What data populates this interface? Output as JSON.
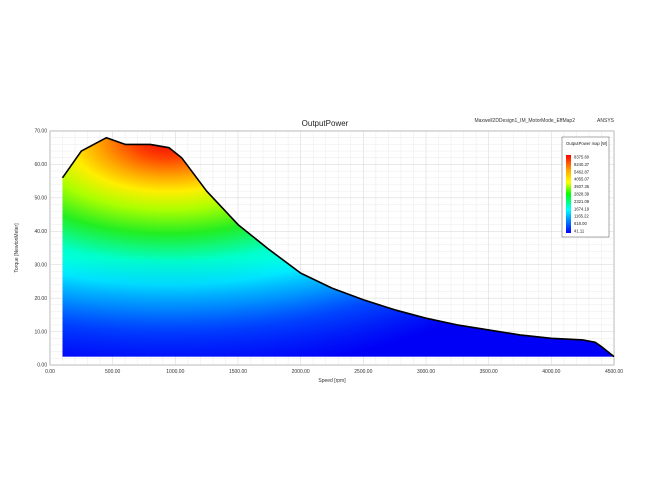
{
  "chart_data": {
    "type": "heatmap",
    "title": "OutputPower",
    "design_label": "Maxwell2DDesign1_IM_MotorMode_EffMap2",
    "brand": "ANSYS",
    "xlabel": "Speed [rpm]",
    "ylabel": "Torque [NewtonMeter]",
    "xlim": [
      0,
      4500
    ],
    "ylim": [
      0,
      70
    ],
    "grid": true,
    "x_ticks": [
      "0.00",
      "500.00",
      "1000.00",
      "1500.00",
      "2000.00",
      "2500.00",
      "3000.00",
      "3500.00",
      "4000.00",
      "4500.00"
    ],
    "y_ticks": [
      "0.00",
      "10.00",
      "20.00",
      "30.00",
      "40.00",
      "50.00",
      "60.00",
      "70.00"
    ],
    "envelope": {
      "x": [
        100,
        250,
        450,
        600,
        800,
        950,
        1050,
        1250,
        1500,
        1750,
        2000,
        2250,
        2500,
        2750,
        3000,
        3250,
        3500,
        3750,
        4000,
        4250,
        4350,
        4400,
        4500
      ],
      "y": [
        56,
        64,
        68,
        66,
        66,
        65,
        62,
        52,
        42,
        34.5,
        27.5,
        23,
        19.5,
        16.5,
        14,
        12,
        10.5,
        9,
        8,
        7.5,
        6.8,
        5.5,
        2.5
      ]
    },
    "legend": {
      "title": "OutputPower map [W]",
      "placement": "top-right",
      "values": [
        "8375.60",
        "8240.37",
        "5462.87",
        "4055.07",
        "3937.35",
        "2828.39",
        "2321.09",
        "1674.19",
        "1165.22",
        "618.00",
        "41.11"
      ],
      "colors": [
        "#ff0000",
        "#ff5500",
        "#ffaa00",
        "#ffff00",
        "#aaff00",
        "#00ff00",
        "#00ffaa",
        "#00ffff",
        "#00aaff",
        "#0055ff",
        "#0000ff"
      ]
    }
  }
}
